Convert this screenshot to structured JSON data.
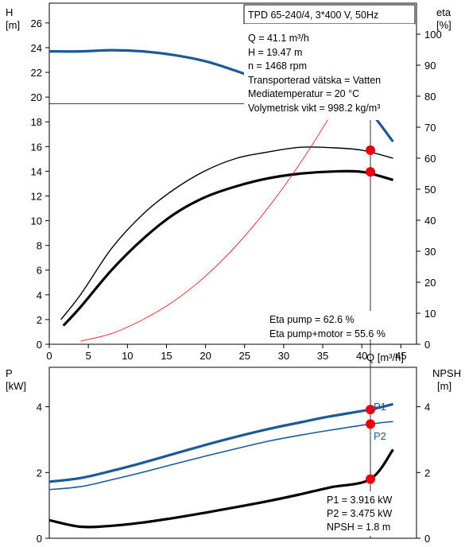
{
  "title": "TPD 65-240/4, 3*400 V, 50Hz",
  "info_lines": [
    "Q = 41.1 m³/h",
    "H = 19.47 m",
    "n = 1468 rpm",
    "Transporterad vätska = Vatten",
    "Mediatemperatur = 20 °C",
    "Volymetrisk vikt = 998.2 kg/m³"
  ],
  "eta_info": [
    "Eta pump = 62.6 %",
    "Eta pump+motor = 55.6 %"
  ],
  "power_info": [
    "P1 = 3.916 kW",
    "P2 = 3.475 kW",
    "NPSH = 1.8 m"
  ],
  "colors": {
    "blue": "#1b5a96",
    "black": "#000000",
    "red": "#e8000b",
    "thin_red": "#e8000b",
    "op_point": "#f7f000"
  },
  "chart_data": [
    {
      "type": "line",
      "name": "H_and_eta",
      "xlabel": "Q [m³/h]",
      "ylabel": "H\n[m]",
      "y2label": "eta\n[%]",
      "xlim": [
        0,
        47
      ],
      "ylim": [
        0,
        27.6
      ],
      "y2lim": [
        0,
        110
      ],
      "x_ticks": [
        0,
        5,
        10,
        15,
        20,
        25,
        30,
        35,
        40,
        45
      ],
      "y_ticks": [
        0,
        2,
        4,
        6,
        8,
        10,
        12,
        14,
        16,
        18,
        20,
        22,
        24,
        26
      ],
      "y2_ticks": [
        0,
        10,
        20,
        30,
        40,
        50,
        60,
        70,
        80,
        90,
        100
      ],
      "operating_point": {
        "q": 41.1,
        "h": 19.47,
        "eta_pump": 62.6,
        "eta_total": 55.6
      },
      "series": [
        {
          "axis": "y",
          "style": "blue-thick",
          "x": [
            0,
            4,
            8,
            12,
            16,
            20,
            24,
            28,
            32,
            36,
            40,
            44
          ],
          "values": [
            23.7,
            23.7,
            23.8,
            23.7,
            23.4,
            22.9,
            22.1,
            21.2,
            20.4,
            19.7,
            19.4,
            16.4
          ]
        },
        {
          "axis": "y2",
          "style": "black-thin",
          "x": [
            1.5,
            4,
            8,
            12,
            16,
            20,
            24,
            28,
            32,
            36,
            40,
            44
          ],
          "values": [
            8,
            16,
            31,
            42,
            50,
            56,
            60,
            62,
            63.5,
            63.4,
            62.6,
            60
          ]
        },
        {
          "axis": "y2",
          "style": "black-thick",
          "x": [
            1.8,
            4,
            8,
            12,
            16,
            20,
            24,
            28,
            32,
            36,
            40,
            44
          ],
          "values": [
            6,
            12,
            24,
            34,
            42,
            47.5,
            51,
            53.5,
            55,
            55.7,
            55.6,
            53
          ]
        },
        {
          "axis": "y2",
          "style": "red-thin",
          "x": [
            4,
            8,
            12,
            16,
            20,
            24,
            28,
            32,
            36,
            41.1
          ],
          "values": [
            1,
            3.5,
            8,
            14,
            22,
            32,
            44,
            58,
            74,
            97.5
          ]
        }
      ],
      "markers": [
        {
          "axis": "y2",
          "x": 41.1,
          "y": 62.6
        },
        {
          "axis": "y2",
          "x": 41.1,
          "y": 55.6
        }
      ]
    },
    {
      "type": "line",
      "name": "power_and_npsh",
      "ylabel": "P\n[kW]",
      "y2label": "NPSH\n[m]",
      "xlim": [
        0,
        47
      ],
      "ylim": [
        0,
        5.2
      ],
      "y2lim": [
        0,
        5.2
      ],
      "y_ticks": [
        0,
        2,
        4
      ],
      "y2_ticks": [
        0,
        2,
        4
      ],
      "series": [
        {
          "name": "P1",
          "style": "blue-thick",
          "x": [
            0,
            4,
            8,
            12,
            16,
            20,
            24,
            28,
            32,
            36,
            41.1,
            44
          ],
          "values": [
            1.72,
            1.83,
            2.05,
            2.3,
            2.57,
            2.84,
            3.09,
            3.32,
            3.52,
            3.71,
            3.916,
            4.08
          ]
        },
        {
          "name": "P2",
          "style": "blue-thin",
          "x": [
            0,
            4,
            8,
            12,
            16,
            20,
            24,
            28,
            32,
            36,
            41.1,
            44
          ],
          "values": [
            1.48,
            1.57,
            1.78,
            2.01,
            2.26,
            2.5,
            2.73,
            2.95,
            3.13,
            3.29,
            3.475,
            3.55
          ]
        },
        {
          "style": "black-thick",
          "x": [
            0,
            4,
            8,
            12,
            16,
            20,
            24,
            28,
            32,
            36,
            41.1,
            44
          ],
          "values": [
            0.55,
            0.35,
            0.38,
            0.48,
            0.62,
            0.78,
            0.95,
            1.13,
            1.33,
            1.55,
            1.8,
            2.7
          ]
        }
      ],
      "markers": [
        {
          "x": 41.1,
          "y": 3.916
        },
        {
          "x": 41.1,
          "y": 3.475
        },
        {
          "x": 41.1,
          "y": 1.8
        }
      ]
    }
  ]
}
